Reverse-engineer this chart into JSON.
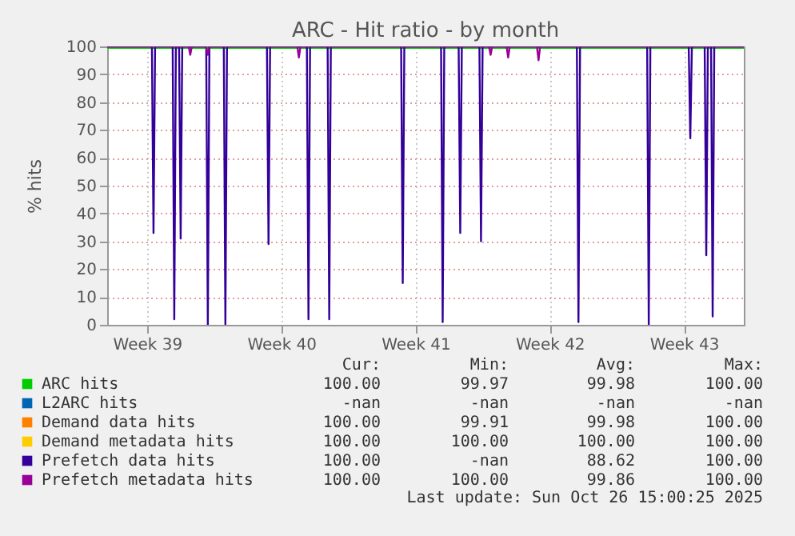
{
  "chart_data": {
    "type": "line",
    "title": "ARC - Hit ratio - by month",
    "ylabel": "% hits",
    "xlim": [
      "2025-09-23T10:00",
      "2025-10-26T15:00"
    ],
    "xticks": [
      {
        "value": "2025-09-25T12:00",
        "label": "Week 39"
      },
      {
        "value": "2025-10-02T12:00",
        "label": "Week 40"
      },
      {
        "value": "2025-10-09T12:00",
        "label": "Week 41"
      },
      {
        "value": "2025-10-16T12:00",
        "label": "Week 42"
      },
      {
        "value": "2025-10-23T12:00",
        "label": "Week 43"
      }
    ],
    "ylim": [
      0,
      100
    ],
    "yticks": [
      0,
      10,
      20,
      30,
      40,
      50,
      60,
      70,
      80,
      90,
      100
    ],
    "grid": true,
    "legend": "bottom",
    "line_style": "solid",
    "marker": "none",
    "series": [
      {
        "name": "ARC hits",
        "color": "#00cc00",
        "x": [
          "2025-09-23T10:00",
          "2025-10-26T15:00"
        ],
        "values": [
          100,
          100
        ]
      },
      {
        "name": "L2ARC hits",
        "color": "#0066b3"
      },
      {
        "name": "Demand data hits",
        "color": "#ff8000"
      },
      {
        "name": "Demand metadata hits",
        "color": "#ffcc00"
      },
      {
        "name": "Prefetch data hits",
        "color": "#330099",
        "x": [
          "2025-09-23T10:00",
          "2025-09-25T18:00",
          "2025-09-25T20:00",
          "2025-09-25T22:00",
          "2025-09-26T20:00",
          "2025-09-26T22:00",
          "2025-09-27T00:00",
          "2025-09-27T04:00",
          "2025-09-27T06:00",
          "2025-09-27T08:00",
          "2025-09-28T14:00",
          "2025-09-28T16:00",
          "2025-09-28T18:00",
          "2025-09-29T12:00",
          "2025-09-29T14:00",
          "2025-09-29T16:00",
          "2025-10-01T18:00",
          "2025-10-01T20:00",
          "2025-10-01T22:00",
          "2025-10-03T20:00",
          "2025-10-03T22:00",
          "2025-10-04T00:00",
          "2025-10-04T22:00",
          "2025-10-05T00:00",
          "2025-10-05T02:00",
          "2025-10-08T18:00",
          "2025-10-08T20:00",
          "2025-10-08T22:00",
          "2025-10-10T20:00",
          "2025-10-10T22:00",
          "2025-10-11T00:00",
          "2025-10-11T18:00",
          "2025-10-11T20:00",
          "2025-10-11T22:00",
          "2025-10-12T20:00",
          "2025-10-12T22:00",
          "2025-10-13T00:00",
          "2025-10-17T22:00",
          "2025-10-18T00:00",
          "2025-10-18T02:00",
          "2025-10-21T14:00",
          "2025-10-21T16:00",
          "2025-10-21T18:00",
          "2025-10-23T18:00",
          "2025-10-23T20:00",
          "2025-10-23T22:00",
          "2025-10-24T14:00",
          "2025-10-24T16:00",
          "2025-10-24T18:00",
          "2025-10-24T22:00",
          "2025-10-25T00:00",
          "2025-10-25T02:00",
          "2025-10-26T15:00"
        ],
        "values": [
          100,
          100,
          33,
          100,
          100,
          2,
          100,
          100,
          31,
          100,
          100,
          0,
          100,
          100,
          0,
          100,
          100,
          29,
          100,
          100,
          2,
          100,
          100,
          2,
          100,
          100,
          15,
          100,
          100,
          1,
          100,
          100,
          33,
          100,
          100,
          30,
          100,
          100,
          1,
          100,
          100,
          0,
          100,
          100,
          67,
          100,
          100,
          25,
          100,
          100,
          3,
          100,
          100
        ]
      },
      {
        "name": "Prefetch metadata hits",
        "color": "#990099",
        "x": [
          "2025-09-23T10:00",
          "2025-09-27T16:00",
          "2025-09-27T18:00",
          "2025-09-27T20:00",
          "2025-09-28T14:00",
          "2025-09-28T16:00",
          "2025-09-28T18:00",
          "2025-10-03T08:00",
          "2025-10-03T10:00",
          "2025-10-03T12:00",
          "2025-10-13T08:00",
          "2025-10-13T10:00",
          "2025-10-13T12:00",
          "2025-10-14T06:00",
          "2025-10-14T08:00",
          "2025-10-14T10:00",
          "2025-10-15T20:00",
          "2025-10-15T22:00",
          "2025-10-16T00:00",
          "2025-10-26T15:00"
        ],
        "values": [
          100,
          100,
          97,
          100,
          100,
          97,
          100,
          100,
          96,
          100,
          100,
          97,
          100,
          100,
          96,
          100,
          100,
          95,
          100,
          100
        ]
      }
    ],
    "annotations": [
      "Cur:",
      "Min:",
      "Avg:",
      "Max:",
      "100.00",
      "99.97",
      "99.98",
      "100.00",
      "-nan",
      "-nan",
      "-nan",
      "-nan",
      "100.00",
      "99.91",
      "99.98",
      "100.00",
      "100.00",
      "100.00",
      "100.00",
      "100.00",
      "100.00",
      "-nan",
      "88.62",
      "100.00",
      "100.00",
      "100.00",
      "99.86",
      "100.00",
      "Last update: Sun Oct 26 15:00:25 2025"
    ]
  }
}
